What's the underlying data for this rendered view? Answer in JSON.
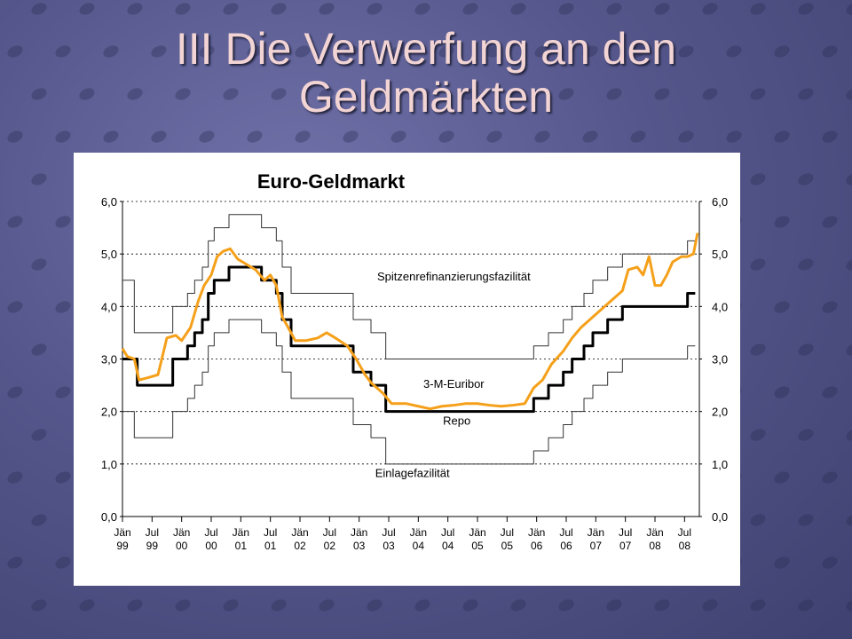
{
  "slide": {
    "title_line1": "III Die Verwerfung an den",
    "title_line2": "Geldmärkten"
  },
  "colors": {
    "background": "#55578c",
    "title": "#f2d4d4",
    "euribor": "#f5a01a",
    "repo": "#000000",
    "corridor": "#333333"
  },
  "chart_data": {
    "type": "line",
    "title": "Euro-Geldmarkt",
    "xlabel": "",
    "ylabel": "",
    "xlim": [
      1999.0,
      2008.75
    ],
    "ylim": [
      0,
      6
    ],
    "yticks": [
      "0,0",
      "1,0",
      "2,0",
      "3,0",
      "4,0",
      "5,0",
      "6,0"
    ],
    "grid": "horizontal dotted",
    "y_axis_right": true,
    "xticks": [
      {
        "x": 1999.0,
        "l1": "Jän",
        "l2": "99"
      },
      {
        "x": 1999.5,
        "l1": "Jul",
        "l2": "99"
      },
      {
        "x": 2000.0,
        "l1": "Jän",
        "l2": "00"
      },
      {
        "x": 2000.5,
        "l1": "Jul",
        "l2": "00"
      },
      {
        "x": 2001.0,
        "l1": "Jän",
        "l2": "01"
      },
      {
        "x": 2001.5,
        "l1": "Jul",
        "l2": "01"
      },
      {
        "x": 2002.0,
        "l1": "Jän",
        "l2": "02"
      },
      {
        "x": 2002.5,
        "l1": "Jul",
        "l2": "02"
      },
      {
        "x": 2003.0,
        "l1": "Jän",
        "l2": "03"
      },
      {
        "x": 2003.5,
        "l1": "Jul",
        "l2": "03"
      },
      {
        "x": 2004.0,
        "l1": "Jän",
        "l2": "04"
      },
      {
        "x": 2004.5,
        "l1": "Jul",
        "l2": "04"
      },
      {
        "x": 2005.0,
        "l1": "Jän",
        "l2": "05"
      },
      {
        "x": 2005.5,
        "l1": "Jul",
        "l2": "05"
      },
      {
        "x": 2006.0,
        "l1": "Jän",
        "l2": "06"
      },
      {
        "x": 2006.5,
        "l1": "Jul",
        "l2": "06"
      },
      {
        "x": 2007.0,
        "l1": "Jän",
        "l2": "07"
      },
      {
        "x": 2007.5,
        "l1": "Jul",
        "l2": "07"
      },
      {
        "x": 2008.0,
        "l1": "Jän",
        "l2": "08"
      },
      {
        "x": 2008.5,
        "l1": "Jul",
        "l2": "08"
      }
    ],
    "series": [
      {
        "name": "Spitzenrefinanzierungsfazilität",
        "style": "step-thin",
        "points": [
          [
            1999.0,
            4.5
          ],
          [
            1999.2,
            3.5
          ],
          [
            1999.85,
            4.0
          ],
          [
            2000.1,
            4.25
          ],
          [
            2000.22,
            4.5
          ],
          [
            2000.35,
            4.75
          ],
          [
            2000.45,
            5.25
          ],
          [
            2000.55,
            5.5
          ],
          [
            2000.8,
            5.75
          ],
          [
            2001.35,
            5.5
          ],
          [
            2001.6,
            5.25
          ],
          [
            2001.7,
            4.75
          ],
          [
            2001.85,
            4.25
          ],
          [
            2002.9,
            3.75
          ],
          [
            2003.2,
            3.5
          ],
          [
            2003.45,
            3.0
          ],
          [
            2005.95,
            3.25
          ],
          [
            2006.2,
            3.5
          ],
          [
            2006.45,
            3.75
          ],
          [
            2006.6,
            4.0
          ],
          [
            2006.8,
            4.25
          ],
          [
            2006.95,
            4.5
          ],
          [
            2007.2,
            4.75
          ],
          [
            2007.45,
            5.0
          ],
          [
            2008.55,
            5.25
          ],
          [
            2008.68,
            5.25
          ]
        ]
      },
      {
        "name": "Repo",
        "style": "step-thick",
        "points": [
          [
            1999.0,
            3.0
          ],
          [
            1999.25,
            2.5
          ],
          [
            1999.85,
            3.0
          ],
          [
            2000.1,
            3.25
          ],
          [
            2000.22,
            3.5
          ],
          [
            2000.35,
            3.75
          ],
          [
            2000.45,
            4.25
          ],
          [
            2000.55,
            4.5
          ],
          [
            2000.8,
            4.75
          ],
          [
            2001.35,
            4.5
          ],
          [
            2001.6,
            4.25
          ],
          [
            2001.7,
            3.75
          ],
          [
            2001.85,
            3.25
          ],
          [
            2002.9,
            2.75
          ],
          [
            2003.2,
            2.5
          ],
          [
            2003.45,
            2.0
          ],
          [
            2005.95,
            2.25
          ],
          [
            2006.2,
            2.5
          ],
          [
            2006.45,
            2.75
          ],
          [
            2006.6,
            3.0
          ],
          [
            2006.8,
            3.25
          ],
          [
            2006.95,
            3.5
          ],
          [
            2007.2,
            3.75
          ],
          [
            2007.45,
            4.0
          ],
          [
            2008.55,
            4.25
          ],
          [
            2008.68,
            4.25
          ]
        ]
      },
      {
        "name": "Einlagefazilität",
        "style": "step-thin",
        "points": [
          [
            1999.0,
            2.0
          ],
          [
            1999.2,
            1.5
          ],
          [
            1999.85,
            2.0
          ],
          [
            2000.1,
            2.25
          ],
          [
            2000.22,
            2.5
          ],
          [
            2000.35,
            2.75
          ],
          [
            2000.45,
            3.25
          ],
          [
            2000.55,
            3.5
          ],
          [
            2000.8,
            3.75
          ],
          [
            2001.35,
            3.5
          ],
          [
            2001.6,
            3.25
          ],
          [
            2001.7,
            2.75
          ],
          [
            2001.85,
            2.25
          ],
          [
            2002.9,
            1.75
          ],
          [
            2003.2,
            1.5
          ],
          [
            2003.45,
            1.0
          ],
          [
            2005.95,
            1.25
          ],
          [
            2006.2,
            1.5
          ],
          [
            2006.45,
            1.75
          ],
          [
            2006.6,
            2.0
          ],
          [
            2006.8,
            2.25
          ],
          [
            2006.95,
            2.5
          ],
          [
            2007.2,
            2.75
          ],
          [
            2007.45,
            3.0
          ],
          [
            2008.55,
            3.25
          ],
          [
            2008.68,
            3.25
          ]
        ]
      },
      {
        "name": "3-M-Euribor",
        "style": "line",
        "points": [
          [
            1999.0,
            3.2
          ],
          [
            1999.08,
            3.05
          ],
          [
            1999.2,
            3.0
          ],
          [
            1999.28,
            2.6
          ],
          [
            1999.45,
            2.65
          ],
          [
            1999.6,
            2.7
          ],
          [
            1999.75,
            3.4
          ],
          [
            1999.9,
            3.45
          ],
          [
            2000.0,
            3.35
          ],
          [
            2000.15,
            3.6
          ],
          [
            2000.28,
            4.1
          ],
          [
            2000.38,
            4.4
          ],
          [
            2000.5,
            4.6
          ],
          [
            2000.6,
            4.95
          ],
          [
            2000.7,
            5.05
          ],
          [
            2000.82,
            5.1
          ],
          [
            2000.95,
            4.9
          ],
          [
            2001.1,
            4.8
          ],
          [
            2001.25,
            4.7
          ],
          [
            2001.4,
            4.5
          ],
          [
            2001.5,
            4.6
          ],
          [
            2001.6,
            4.4
          ],
          [
            2001.7,
            3.8
          ],
          [
            2001.8,
            3.6
          ],
          [
            2001.92,
            3.35
          ],
          [
            2002.1,
            3.35
          ],
          [
            2002.3,
            3.4
          ],
          [
            2002.45,
            3.5
          ],
          [
            2002.6,
            3.4
          ],
          [
            2002.8,
            3.25
          ],
          [
            2002.95,
            3.0
          ],
          [
            2003.1,
            2.7
          ],
          [
            2003.2,
            2.55
          ],
          [
            2003.4,
            2.35
          ],
          [
            2003.55,
            2.15
          ],
          [
            2003.8,
            2.15
          ],
          [
            2004.0,
            2.1
          ],
          [
            2004.2,
            2.05
          ],
          [
            2004.4,
            2.1
          ],
          [
            2004.6,
            2.12
          ],
          [
            2004.8,
            2.15
          ],
          [
            2005.0,
            2.15
          ],
          [
            2005.2,
            2.12
          ],
          [
            2005.4,
            2.1
          ],
          [
            2005.6,
            2.12
          ],
          [
            2005.8,
            2.15
          ],
          [
            2005.95,
            2.45
          ],
          [
            2006.1,
            2.6
          ],
          [
            2006.25,
            2.9
          ],
          [
            2006.45,
            3.15
          ],
          [
            2006.6,
            3.4
          ],
          [
            2006.75,
            3.6
          ],
          [
            2006.95,
            3.8
          ],
          [
            2007.1,
            3.95
          ],
          [
            2007.25,
            4.1
          ],
          [
            2007.45,
            4.3
          ],
          [
            2007.55,
            4.7
          ],
          [
            2007.7,
            4.75
          ],
          [
            2007.8,
            4.6
          ],
          [
            2007.9,
            4.95
          ],
          [
            2008.0,
            4.4
          ],
          [
            2008.1,
            4.4
          ],
          [
            2008.2,
            4.6
          ],
          [
            2008.3,
            4.85
          ],
          [
            2008.45,
            4.95
          ],
          [
            2008.55,
            4.95
          ],
          [
            2008.65,
            5.0
          ],
          [
            2008.72,
            5.4
          ]
        ]
      }
    ],
    "annotations": [
      {
        "text": "Spitzenrefinanzierungsfazilität",
        "x": 2004.6,
        "y": 4.5
      },
      {
        "text": "3-M-Euribor",
        "x": 2004.6,
        "y": 2.45
      },
      {
        "text": "Repo",
        "x": 2004.65,
        "y": 1.75
      },
      {
        "text": "Einlagefazilität",
        "x": 2003.9,
        "y": 0.75
      }
    ]
  }
}
